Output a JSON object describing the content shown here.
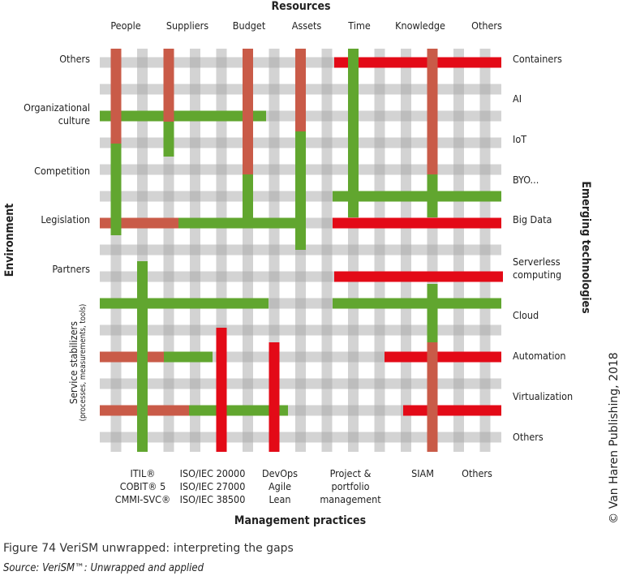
{
  "resources": {
    "title": "Resources",
    "columns": [
      "People",
      "Suppliers",
      "Budget",
      "Assets",
      "Time",
      "Knowledge",
      "Others"
    ]
  },
  "environment": {
    "title": "Environment",
    "rows": [
      "Others",
      "Organizational culture",
      "Competition",
      "Legislation",
      "Partners"
    ]
  },
  "stabilizers": {
    "title": "Service stabilizers",
    "subtitle": "(processes, measurements, tools)"
  },
  "emerging": {
    "title": "Emerging technologies",
    "rows": [
      "Containers",
      "AI",
      "IoT",
      "BYO...",
      "Big Data",
      "Serverless computing",
      "Cloud",
      "Automation",
      "Virtualization",
      "Others"
    ]
  },
  "practices": {
    "title": "Management practices",
    "columns": [
      [
        "ITIL®",
        "COBIT® 5",
        "CMMI-SVC®"
      ],
      [
        "ISO/IEC 20000",
        "ISO/IEC 27000",
        "ISO/IEC 38500"
      ],
      [
        "DevOps",
        "Agile",
        "Lean"
      ],
      [
        "Project &",
        "portfolio",
        "management"
      ],
      [
        "SIAM"
      ],
      [
        "Others"
      ]
    ]
  },
  "copyright": "© Van Haren Publishing, 2018",
  "caption": "Figure 74 VeriSM unwrapped: interpreting the gaps",
  "source": "Source: VeriSM™: Unwrapped and applied",
  "colors": {
    "grid": "#a8a8a8",
    "brick": "#c95b48",
    "green": "#61a62f",
    "red": "#e30a17"
  }
}
